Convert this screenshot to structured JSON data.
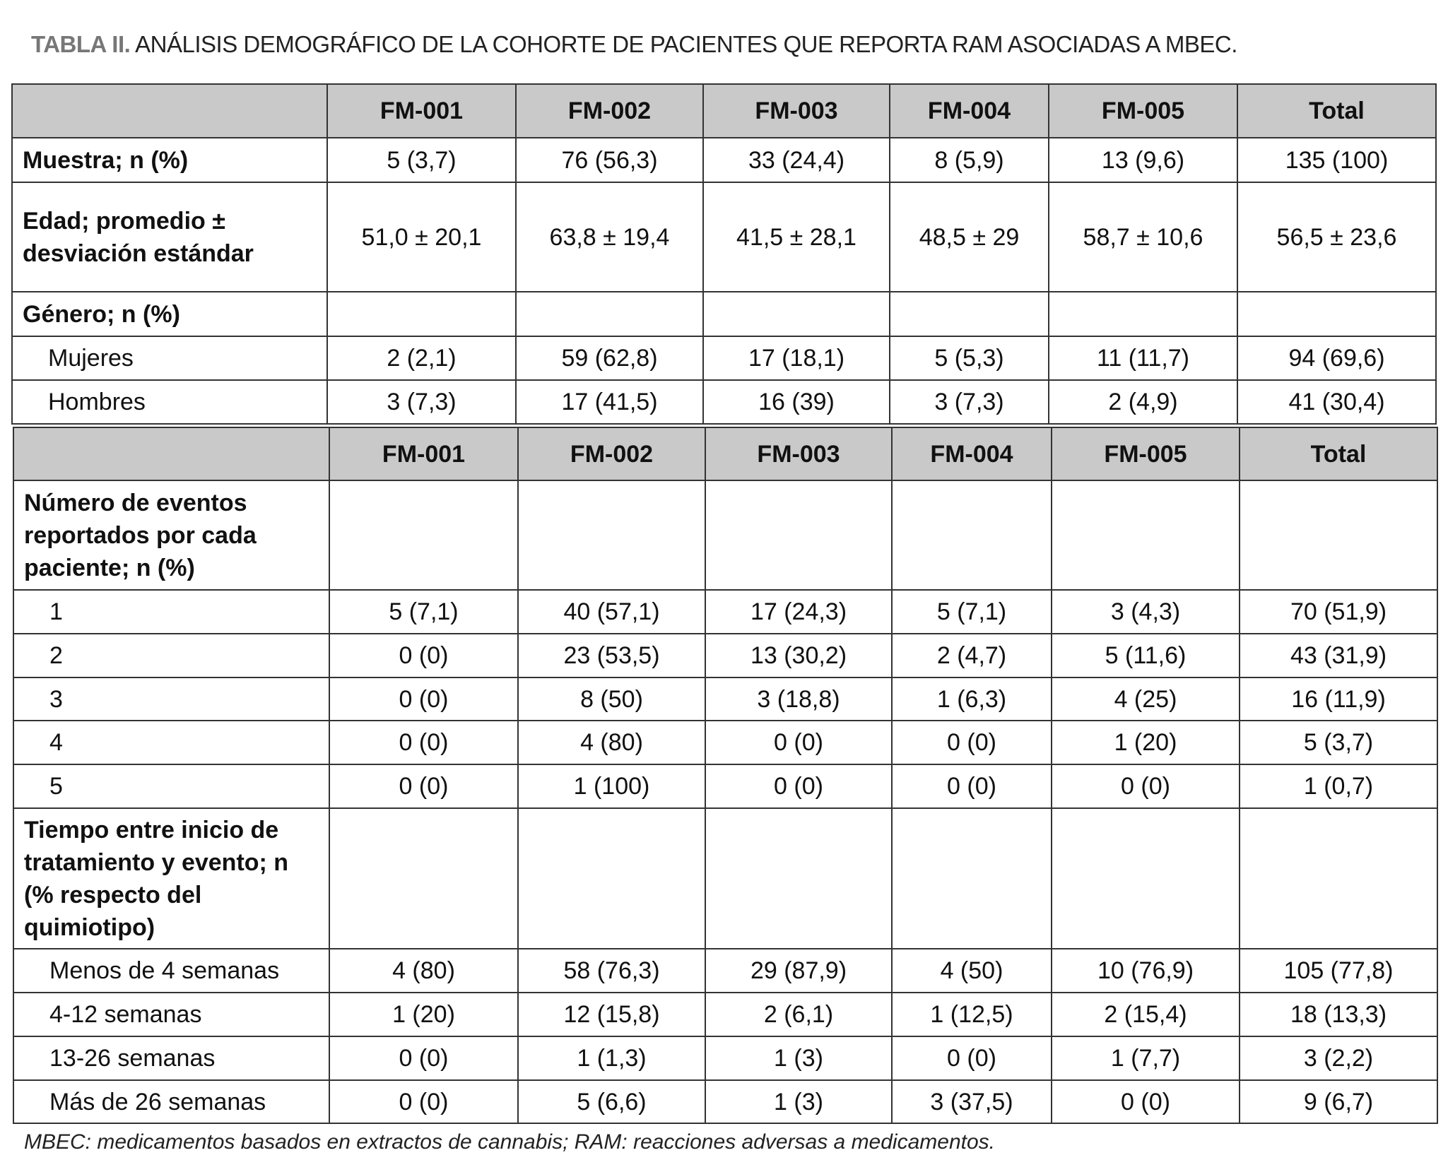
{
  "title": {
    "label": "TABLA II.",
    "text": "ANÁLISIS DEMOGRÁFICO DE LA COHORTE DE PACIENTES QUE REPORTA RAM ASOCIADAS A MBEC."
  },
  "columns": [
    "FM-001",
    "FM-002",
    "FM-003",
    "FM-004",
    "FM-005",
    "Total"
  ],
  "table1": {
    "rows": [
      {
        "label": "Muestra; n (%)",
        "type": "lab",
        "values": [
          "5 (3,7)",
          "76 (56,3)",
          "33 (24,4)",
          "8 (5,9)",
          "13 (9,6)",
          "135 (100)"
        ]
      },
      {
        "label": "Edad; promedio ± desviación estándar",
        "type": "lab",
        "values": [
          "51,0 ± 20,1",
          "63,8 ± 19,4",
          "41,5 ± 28,1",
          "48,5 ± 29",
          "58,7 ± 10,6",
          "56,5 ± 23,6"
        ]
      },
      {
        "label": "Género; n (%)",
        "type": "lab",
        "values": [
          "",
          "",
          "",
          "",
          "",
          ""
        ]
      },
      {
        "label": "Mujeres",
        "type": "sub",
        "values": [
          "2 (2,1)",
          "59 (62,8)",
          "17 (18,1)",
          "5 (5,3)",
          "11 (11,7)",
          "94 (69,6)"
        ]
      },
      {
        "label": "Hombres",
        "type": "sub",
        "values": [
          "3 (7,3)",
          "17 (41,5)",
          "16 (39)",
          "3 (7,3)",
          "2 (4,9)",
          "41 (30,4)"
        ]
      }
    ]
  },
  "table2": {
    "rows": [
      {
        "label": "Número de eventos reportados por cada paciente; n (%)",
        "type": "lab",
        "values": [
          "",
          "",
          "",
          "",
          "",
          ""
        ]
      },
      {
        "label": "1",
        "type": "sub",
        "values": [
          "5 (7,1)",
          "40 (57,1)",
          "17 (24,3)",
          "5 (7,1)",
          "3 (4,3)",
          "70 (51,9)"
        ]
      },
      {
        "label": "2",
        "type": "sub",
        "values": [
          "0 (0)",
          "23 (53,5)",
          "13 (30,2)",
          "2 (4,7)",
          "5 (11,6)",
          "43 (31,9)"
        ]
      },
      {
        "label": "3",
        "type": "sub",
        "values": [
          "0 (0)",
          "8 (50)",
          "3 (18,8)",
          "1 (6,3)",
          "4 (25)",
          "16 (11,9)"
        ]
      },
      {
        "label": "4",
        "type": "sub",
        "values": [
          "0 (0)",
          "4 (80)",
          "0 (0)",
          "0 (0)",
          "1 (20)",
          "5 (3,7)"
        ]
      },
      {
        "label": "5",
        "type": "sub",
        "values": [
          "0 (0)",
          "1 (100)",
          "0 (0)",
          "0 (0)",
          "0 (0)",
          "1 (0,7)"
        ]
      },
      {
        "label": "Tiempo entre inicio de tratamiento y evento; n (% respecto del quimiotipo)",
        "type": "lab",
        "values": [
          "",
          "",
          "",
          "",
          "",
          ""
        ]
      },
      {
        "label": "Menos de 4 semanas",
        "type": "sub",
        "values": [
          "4 (80)",
          "58 (76,3)",
          "29 (87,9)",
          "4 (50)",
          "10 (76,9)",
          "105 (77,8)"
        ]
      },
      {
        "label": "4-12 semanas",
        "type": "sub",
        "values": [
          "1 (20)",
          "12 (15,8)",
          "2 (6,1)",
          "1 (12,5)",
          "2 (15,4)",
          "18 (13,3)"
        ]
      },
      {
        "label": "13-26 semanas",
        "type": "sub",
        "values": [
          "0 (0)",
          "1 (1,3)",
          "1 (3)",
          "0 (0)",
          "1 (7,7)",
          "3 (2,2)"
        ]
      },
      {
        "label": "Más de 26 semanas",
        "type": "sub",
        "values": [
          "0 (0)",
          "5 (6,6)",
          "1 (3)",
          "3 (37,5)",
          "0 (0)",
          "9 (6,7)"
        ]
      }
    ]
  },
  "footnote": "MBEC: medicamentos basados en extractos de cannabis; RAM: reacciones adversas a medicamentos."
}
